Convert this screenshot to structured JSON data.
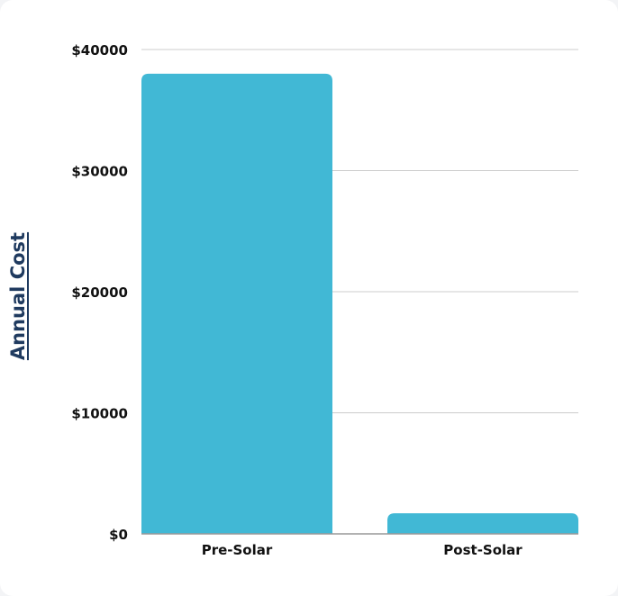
{
  "chart_data": {
    "type": "bar",
    "categories": [
      "Pre-Solar",
      "Post-Solar"
    ],
    "values": [
      38000,
      1700
    ],
    "ylabel": "Annual Cost",
    "xlabel": "",
    "ylim": [
      0,
      40000
    ],
    "yticks": [
      0,
      10000,
      20000,
      30000,
      40000
    ],
    "ytick_labels": [
      "$0",
      "$10000",
      "$20000",
      "$30000",
      "$40000"
    ],
    "grid": true,
    "bar_color": "#41b8d5",
    "grid_color": "#cccccc",
    "label_color": "#1f3a5f"
  }
}
